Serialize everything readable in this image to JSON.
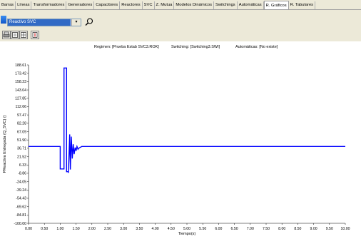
{
  "tabs": [
    "Barras",
    "Líneas",
    "Transformadores",
    "Generadores",
    "Capacitores",
    "Reactores",
    "SVC",
    "Z. Mutua",
    "Modelos Dinámicos",
    "Switchings",
    "Automáticas",
    "R. Gráficos",
    "R. Tabulares"
  ],
  "active_tab_index": 11,
  "selector": {
    "value": "Reactivo SVC",
    "dropdown_icon": "chevron-down-icon"
  },
  "header": {
    "regimen": "Regimen: [Prueba Estab SVC3.ROK]",
    "switching": "Switching: [Switching3.SWI]",
    "automaticas": "Automáticas: [No existe]"
  },
  "colors": {
    "series": "#0000ff",
    "background": "#ffffff",
    "combo_selected": "#316ac5"
  },
  "chart_data": {
    "type": "line",
    "ylabel": "PReactiva Entregada (Q_SVC) ()",
    "xlabel": "Tiempo(s)",
    "xlim": [
      0,
      10
    ],
    "ylim": [
      -100,
      188.61
    ],
    "x_ticks": [
      "0.00",
      "0.50",
      "1.00",
      "1.50",
      "2.00",
      "2.50",
      "3.00",
      "3.50",
      "4.00",
      "4.50",
      "5.00",
      "5.50",
      "6.00",
      "6.50",
      "7.00",
      "7.50",
      "8.00",
      "8.50",
      "9.00",
      "9.50",
      "10.00"
    ],
    "y_ticks": [
      "188.61",
      "173.42",
      "158.23",
      "143.04",
      "127.85",
      "112.66",
      "97.47",
      "82.28",
      "67.09",
      "51.90",
      "36.71",
      "21.52",
      "6.33",
      "-8.86",
      "-24.05",
      "-39.24",
      "-54.43",
      "-69.62",
      "-84.81",
      "-100.00"
    ],
    "series": [
      {
        "x": [
          0,
          1.0,
          1.0,
          1.12,
          1.12,
          1.2,
          1.2,
          1.26,
          1.26,
          1.3,
          1.32,
          1.35,
          1.38,
          1.41,
          1.44,
          1.47,
          1.5,
          1.53,
          1.56,
          1.59,
          1.62,
          1.65,
          1.68,
          1.71,
          1.75,
          1.8,
          1.9,
          2.0,
          10.0
        ],
        "y": [
          40,
          40,
          -1,
          -1,
          183,
          183,
          -6,
          -6,
          -8,
          62,
          -2,
          58,
          18,
          44,
          26,
          38,
          32,
          40,
          35,
          37,
          38,
          39,
          40,
          40,
          40,
          40,
          40,
          40,
          40
        ]
      }
    ]
  }
}
